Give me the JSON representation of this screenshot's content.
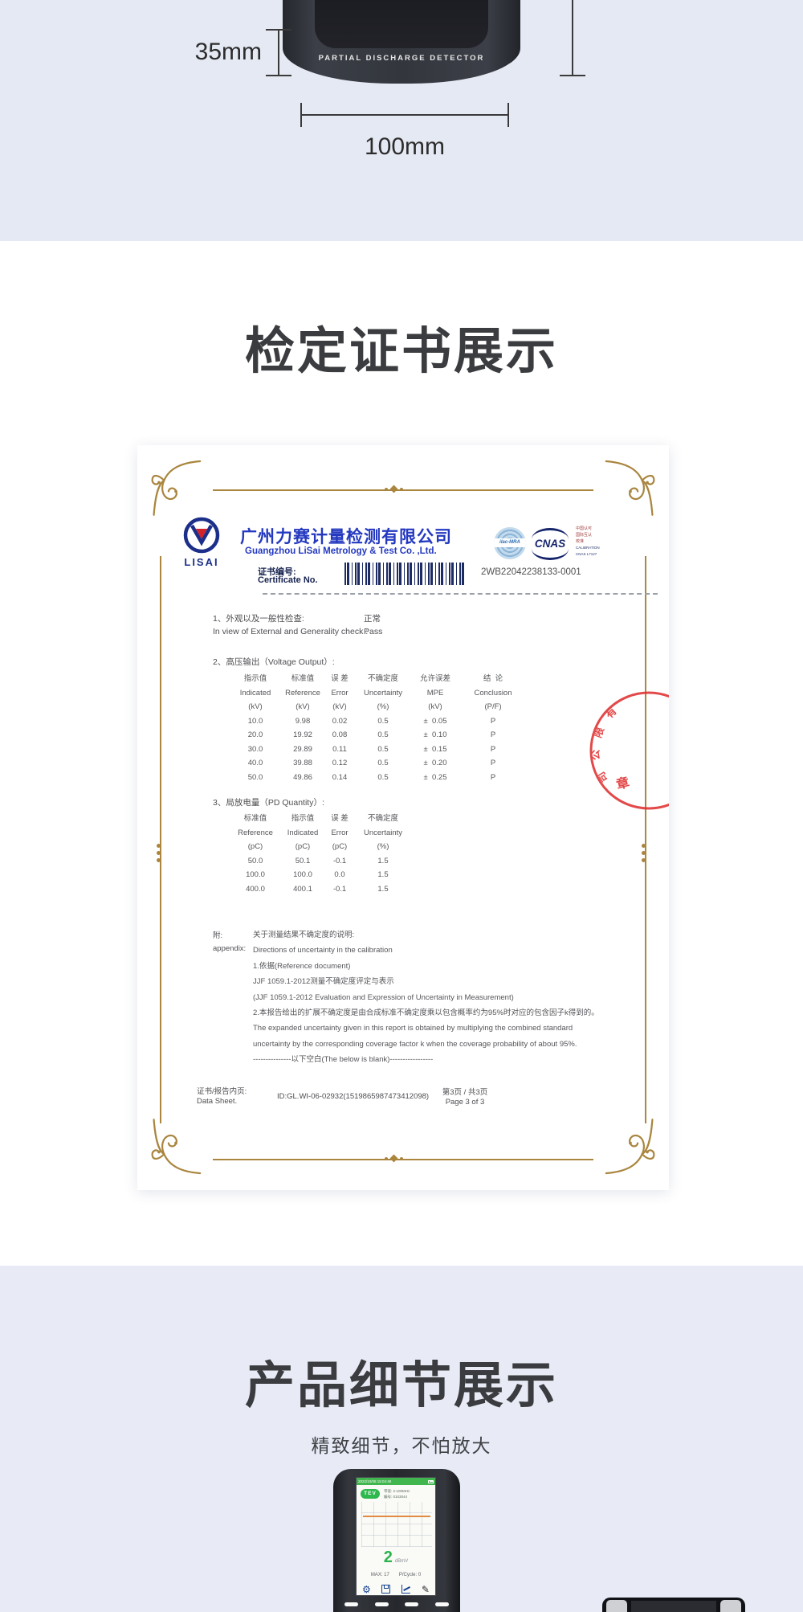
{
  "colors": {
    "top_bg": "#e5e9f3",
    "bottom_bg": "#e8ebf6",
    "gold": "#a9853e",
    "brand_blue": "#2439c0",
    "navy": "#1b2f8a",
    "seal_red": "#e03030",
    "screen_green": "#2eb84d"
  },
  "top_section": {
    "device_label": "PARTIAL DISCHARGE DETECTOR",
    "dim_height": "35mm",
    "dim_width": "100mm"
  },
  "certificate_section": {
    "title": "检定证书展示"
  },
  "certificate": {
    "logo_word": "LISAI",
    "company_cn": "广州力赛计量检测有限公司",
    "company_en": "Guangzhou LiSai Metrology & Test Co. ,Ltd.",
    "accreditation": {
      "ilac": "ilac-MRA",
      "cnas": "CNAS",
      "side_lines": [
        "中国认可",
        "国际互认",
        "校准",
        "CALIBRATION",
        "CNAS L7127"
      ]
    },
    "cert_no_label_cn": "证书编号:",
    "cert_no_label_en": "Certificate No.",
    "cert_no": "2WB22042238133-0001",
    "item1": {
      "label_cn": "1、外观以及一般性检查:",
      "label_en": "In view of External and Generality check :",
      "value_cn": "正常",
      "value_en": "Pass"
    },
    "voltage": {
      "title": "2、高压输出（Voltage Output）:",
      "headers_cn": [
        "指示值",
        "标准值",
        "误 差",
        "不确定度",
        "允许误差",
        "结  论"
      ],
      "headers_en": [
        "Indicated",
        "Reference",
        "Error",
        "Uncertainty",
        "MPE",
        "Conclusion"
      ],
      "units": [
        "(kV)",
        "(kV)",
        "(kV)",
        "(%)",
        "(kV)",
        "(P/F)"
      ],
      "rows": [
        [
          "10.0",
          "9.98",
          "0.02",
          "0.5",
          "±  0.05",
          "P"
        ],
        [
          "20.0",
          "19.92",
          "0.08",
          "0.5",
          "±  0.10",
          "P"
        ],
        [
          "30.0",
          "29.89",
          "0.11",
          "0.5",
          "±  0.15",
          "P"
        ],
        [
          "40.0",
          "39.88",
          "0.12",
          "0.5",
          "±  0.20",
          "P"
        ],
        [
          "50.0",
          "49.86",
          "0.14",
          "0.5",
          "±  0.25",
          "P"
        ]
      ]
    },
    "pd": {
      "title": "3、局放电量（PD Quantity）:",
      "headers_cn": [
        "标准值",
        "指示值",
        "误 差",
        "不确定度"
      ],
      "headers_en": [
        "Reference",
        "Indicated",
        "Error",
        "Uncertainty"
      ],
      "units": [
        "(pC)",
        "(pC)",
        "(pC)",
        "(%)"
      ],
      "rows": [
        [
          "50.0",
          "50.1",
          "-0.1",
          "1.5"
        ],
        [
          "100.0",
          "100.0",
          "0.0",
          "1.5"
        ],
        [
          "400.0",
          "400.1",
          "-0.1",
          "1.5"
        ]
      ]
    },
    "appendix": {
      "label_cn": "附:",
      "label_en": "appendix:",
      "lines": [
        "关于测量结果不确定度的说明:",
        "Directions of uncertainty in the calibration",
        "1.依据(Reference document)",
        "JJF 1059.1-2012测量不确定度评定与表示",
        "(JJF 1059.1-2012 Evaluation and Expression of Uncertainty in Measurement)",
        "2.本报告给出的扩展不确定度是由合成标准不确定度乘以包含概率约为95%时对应的包含因子k得到的。",
        "The expanded uncertainty given in this report is obtained by multiplying the combined standard",
        "uncertainty by the corresponding coverage factor k when the coverage probability of about 95%.",
        "---------------以下空白(The below is blank)-----------------"
      ]
    },
    "stamp": {
      "chars": [
        "有",
        "限",
        "公",
        "司"
      ],
      "center_char": "章"
    },
    "footer": {
      "left_cn": "证书/报告内页:",
      "left_en": "Data Sheet.",
      "id": "ID:GL.WI-06-02932(1519865987473412098)",
      "page_cn": "第3页 / 共3页",
      "page_en": "Page 3 of 3"
    }
  },
  "details_section": {
    "title": "产品细节展示",
    "subtitle": "精致细节，不怕放大",
    "screen": {
      "status": "2022/10/08 15:04:48",
      "badge": "TEV",
      "info_line1": "带宽: 2-100MHz",
      "info_line2": "编号: 0103044",
      "value": "2",
      "unit": "dBmV",
      "max": "MAX: 17",
      "cycle": "P/Cycle: 0"
    },
    "icons": {
      "gear": "⚙",
      "pencil": "✎"
    }
  }
}
